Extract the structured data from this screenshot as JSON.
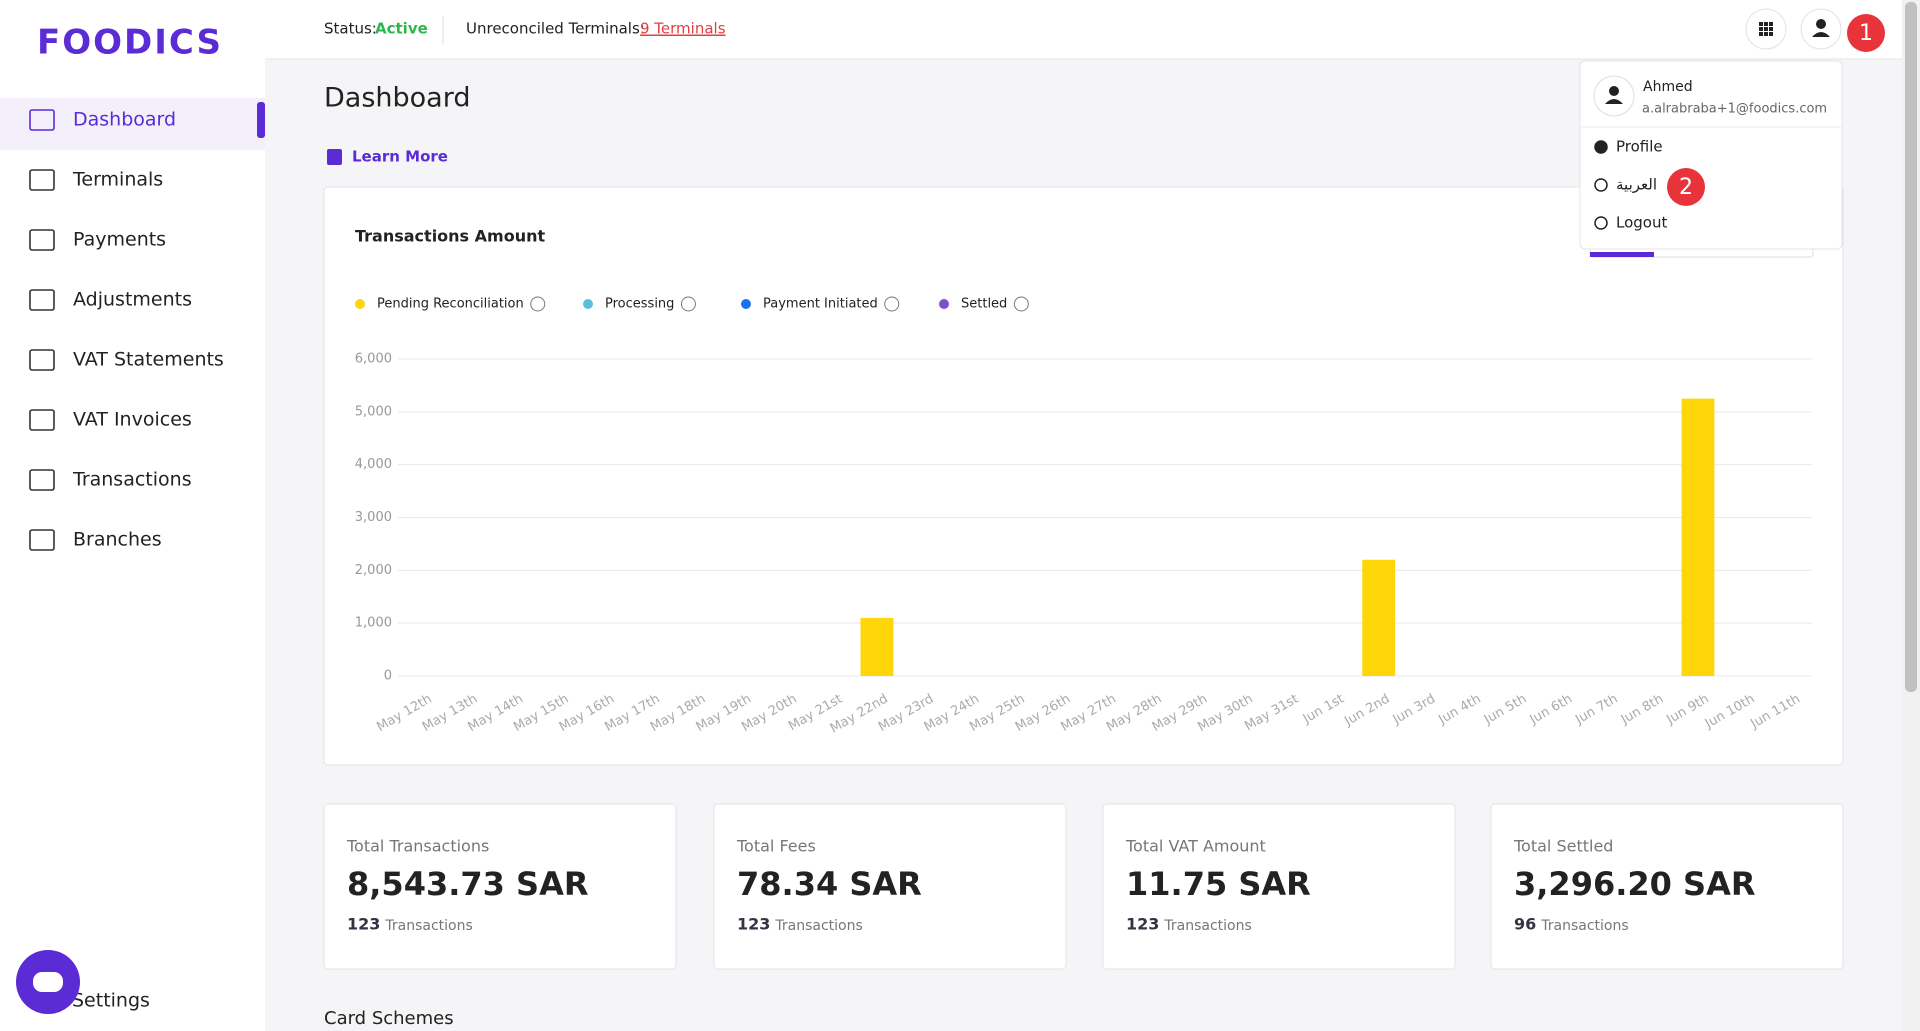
{
  "logo": "FOODICS",
  "header": {
    "status_label": "Status:",
    "status_value": "Active",
    "unreconciled_label": "Unreconciled Terminals:",
    "unreconciled_value": "9 Terminals"
  },
  "sidebar": {
    "items": [
      "Dashboard",
      "Terminals",
      "Payments",
      "Adjustments",
      "VAT Statements",
      "VAT Invoices",
      "Transactions",
      "Branches"
    ],
    "settings": "Settings"
  },
  "page": {
    "title": "Dashboard",
    "learn_more": "Learn More",
    "section": "Card Schemes"
  },
  "chart_data": {
    "type": "bar",
    "title": "Transactions Amount",
    "stacked": true,
    "grid": true,
    "categories": [
      "May 12th",
      "May 13th",
      "May 14th",
      "May 15th",
      "May 16th",
      "May 17th",
      "May 18th",
      "May 19th",
      "May 20th",
      "May 21st",
      "May 22nd",
      "May 23rd",
      "May 24th",
      "May 25th",
      "May 26th",
      "May 27th",
      "May 28th",
      "May 29th",
      "May 30th",
      "May 31st",
      "Jun 1st",
      "Jun 2nd",
      "Jun 3rd",
      "Jun 4th",
      "Jun 5th",
      "Jun 6th",
      "Jun 7th",
      "Jun 8th",
      "Jun 9th",
      "Jun 10th",
      "Jun 11th"
    ],
    "series": [
      {
        "name": "Pending Reconciliation",
        "color": "#ffd60a",
        "values": [
          0,
          0,
          0,
          0,
          0,
          0,
          0,
          0,
          0,
          0,
          1100,
          0,
          0,
          0,
          0,
          0,
          0,
          0,
          0,
          0,
          0,
          2200,
          0,
          0,
          0,
          0,
          0,
          0,
          5250,
          0,
          0
        ]
      },
      {
        "name": "Processing",
        "color": "#5bc0de",
        "values": [
          0,
          0,
          0,
          0,
          0,
          0,
          0,
          0,
          0,
          0,
          0,
          0,
          0,
          0,
          0,
          0,
          0,
          0,
          0,
          0,
          0,
          0,
          0,
          0,
          0,
          0,
          0,
          0,
          0,
          0,
          0
        ]
      },
      {
        "name": "Payment Initiated",
        "color": "#1a73e8",
        "values": [
          0,
          0,
          0,
          0,
          0,
          0,
          0,
          0,
          0,
          0,
          0,
          0,
          0,
          0,
          0,
          0,
          0,
          0,
          0,
          0,
          0,
          0,
          0,
          0,
          0,
          0,
          0,
          0,
          0,
          0,
          0
        ]
      },
      {
        "name": "Settled",
        "color": "#7b52c9",
        "values": [
          0,
          0,
          0,
          0,
          0,
          0,
          0,
          0,
          0,
          0,
          0,
          0,
          0,
          0,
          0,
          0,
          0,
          0,
          0,
          0,
          0,
          0,
          0,
          0,
          0,
          0,
          0,
          0,
          0,
          0,
          0
        ]
      }
    ],
    "ylim": [
      0,
      6000
    ],
    "yticks": [
      0,
      {
        "value": 1000,
        "label": "1,000"
      },
      {
        "value": 2000,
        "label": "2,000"
      },
      {
        "value": 3000,
        "label": "3,000"
      },
      {
        "value": 4000,
        "label": "4,000"
      },
      {
        "value": 5000,
        "label": "5,000"
      },
      {
        "value": 6000,
        "label": "6,000"
      }
    ]
  },
  "cards": [
    {
      "title": "Total Transactions",
      "amount": "8,543.73 SAR",
      "count": "123",
      "unit": "Transactions"
    },
    {
      "title": "Total Fees",
      "amount": "78.34 SAR",
      "count": "123",
      "unit": "Transactions"
    },
    {
      "title": "Total VAT Amount",
      "amount": "11.75 SAR",
      "count": "123",
      "unit": "Transactions"
    },
    {
      "title": "Total Settled",
      "amount": "3,296.20 SAR",
      "count": "96",
      "unit": "Transactions"
    }
  ],
  "menu": {
    "name": "Ahmed",
    "email": "a.alrabraba+1@foodics.com",
    "items": [
      "Profile",
      "العربية",
      "Logout"
    ]
  },
  "steps": [
    "1",
    "2"
  ]
}
